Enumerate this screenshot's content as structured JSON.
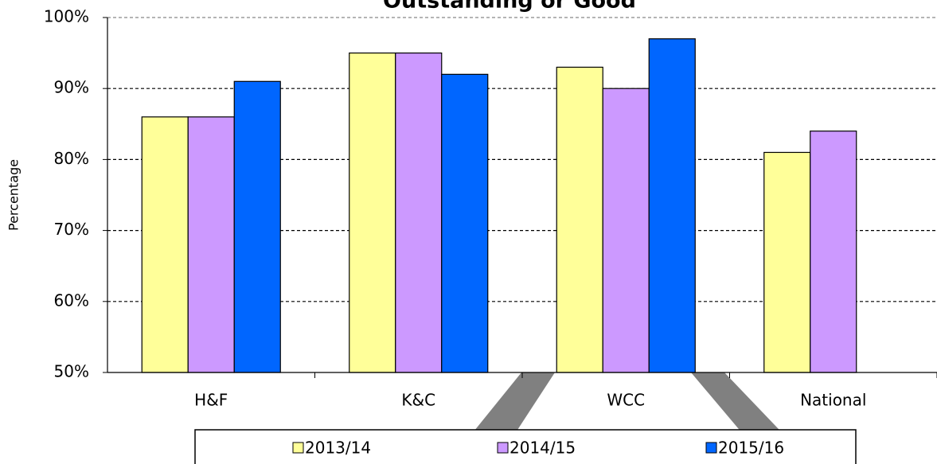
{
  "chart_data": {
    "type": "bar",
    "title": "Outstanding or Good",
    "y_label": "Percentage",
    "categories": [
      "H&F",
      "K&C",
      "WCC",
      "National"
    ],
    "series": [
      {
        "name": "2013/14",
        "color": "#ffff99",
        "values": [
          86,
          95,
          93,
          81
        ]
      },
      {
        "name": "2014/15",
        "color": "#cc99ff",
        "values": [
          86,
          95,
          90,
          84
        ]
      },
      {
        "name": "2015/16",
        "color": "#0066ff",
        "values": [
          91,
          92,
          97,
          null
        ]
      }
    ],
    "ylim": [
      50,
      100
    ],
    "yticks": [
      {
        "value": 50,
        "label": "50%"
      },
      {
        "value": 60,
        "label": "60%"
      },
      {
        "value": 70,
        "label": "70%"
      },
      {
        "value": 80,
        "label": "80%"
      },
      {
        "value": 90,
        "label": "90%"
      },
      {
        "value": 100,
        "label": "100%"
      }
    ],
    "grid": true,
    "legend": "bottom"
  }
}
